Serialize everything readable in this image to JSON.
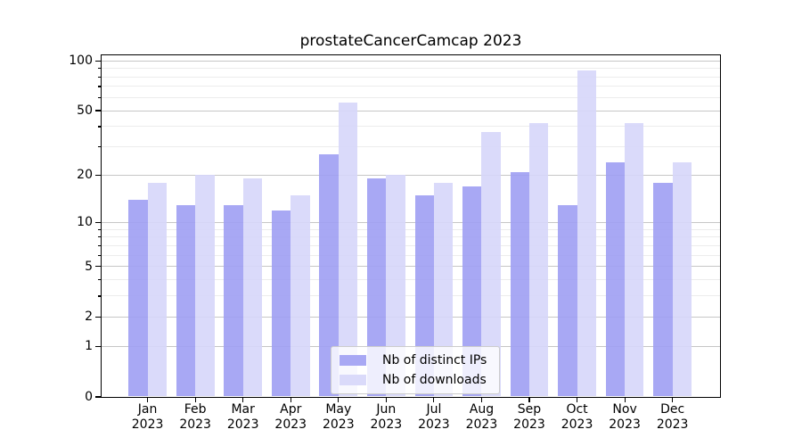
{
  "figure": {
    "title": "prostateCancerCamcap 2023"
  },
  "chart_data": {
    "type": "bar",
    "title": "prostateCancerCamcap 2023",
    "yscale": "log1p",
    "ylim": [
      0,
      108
    ],
    "grid": true,
    "legend_position": "lower center",
    "y_major_ticks": [
      0,
      1,
      2,
      5,
      10,
      20,
      50,
      100
    ],
    "y_minor_ticks": [
      3,
      4,
      6,
      7,
      8,
      9,
      30,
      40,
      60,
      70,
      80,
      90
    ],
    "x_ticks": [
      {
        "month": "Jan",
        "year": "2023"
      },
      {
        "month": "Feb",
        "year": "2023"
      },
      {
        "month": "Mar",
        "year": "2023"
      },
      {
        "month": "Apr",
        "year": "2023"
      },
      {
        "month": "May",
        "year": "2023"
      },
      {
        "month": "Jun",
        "year": "2023"
      },
      {
        "month": "Jul",
        "year": "2023"
      },
      {
        "month": "Aug",
        "year": "2023"
      },
      {
        "month": "Sep",
        "year": "2023"
      },
      {
        "month": "Oct",
        "year": "2023"
      },
      {
        "month": "Nov",
        "year": "2023"
      },
      {
        "month": "Dec",
        "year": "2023"
      }
    ],
    "series": [
      {
        "name": "Nb of distinct IPs",
        "color": "#9e9ef3",
        "values": [
          14,
          13,
          13,
          12,
          27,
          19,
          15,
          17,
          21,
          13,
          24,
          18
        ]
      },
      {
        "name": "Nb of downloads",
        "color": "#d6d6f9",
        "values": [
          18,
          20,
          19,
          15,
          56,
          20,
          18,
          37,
          42,
          88,
          42,
          24
        ]
      }
    ]
  }
}
